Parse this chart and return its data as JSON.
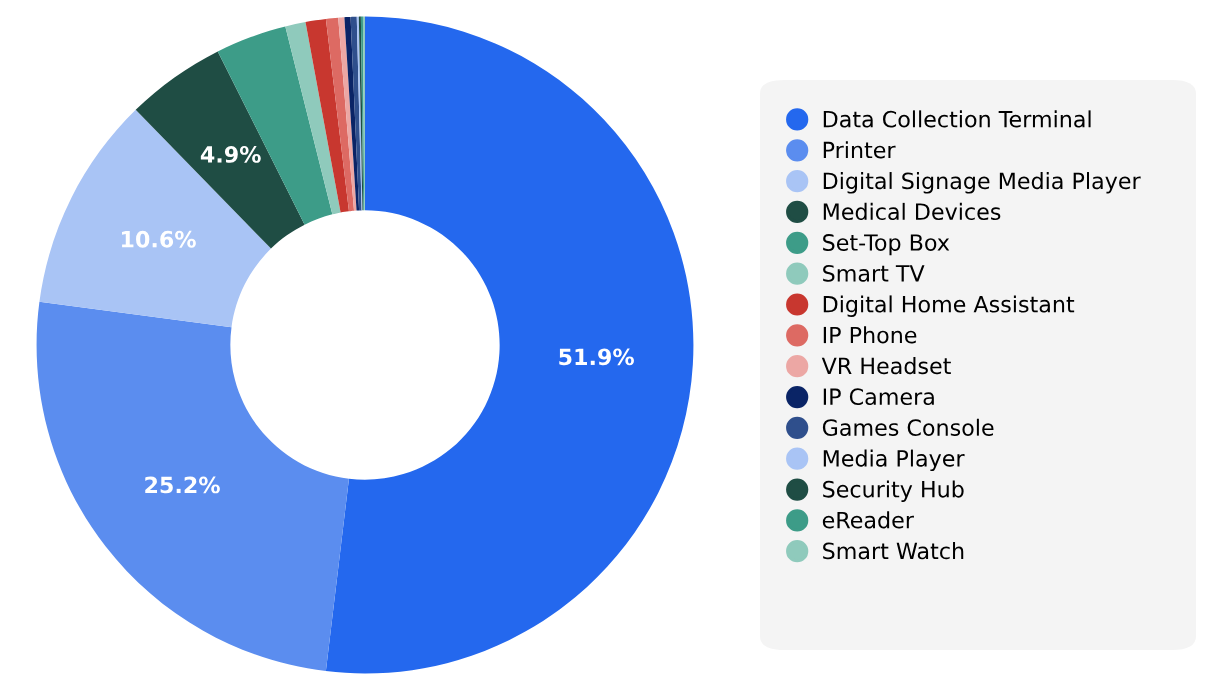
{
  "chart_data": {
    "type": "donut",
    "categories": [
      "Data Collection Terminal",
      "Printer",
      "Digital Signage Media Player",
      "Medical Devices",
      "Set-Top Box",
      "Smart TV",
      "Digital Home Assistant",
      "IP Phone",
      "VR Headset",
      "IP Camera",
      "Games Console",
      "Media Player",
      "Security Hub",
      "eReader",
      "Smart Watch"
    ],
    "values": [
      51.9,
      25.2,
      10.6,
      4.9,
      3.5,
      1.0,
      1.0,
      0.6,
      0.3,
      0.3,
      0.3,
      0.1,
      0.1,
      0.1,
      0.1
    ],
    "colors": [
      "#2468ee",
      "#5b8def",
      "#a9c4f5",
      "#1f4d44",
      "#3d9c88",
      "#8fcabc",
      "#c8372f",
      "#dd6a63",
      "#eca7a4",
      "#0a2466",
      "#2f4f8c",
      "#a9c4f5",
      "#1f4d44",
      "#3d9c88",
      "#8fcabc"
    ],
    "value_labels": [
      "51.9%",
      "25.2%",
      "10.6%",
      "4.9%",
      null,
      null,
      null,
      null,
      null,
      null,
      null,
      null,
      null,
      null,
      null
    ],
    "legend": "right"
  }
}
